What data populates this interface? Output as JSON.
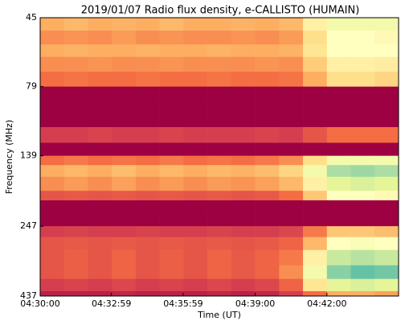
{
  "chart_data": {
    "type": "heatmap",
    "title": "2019/01/07  Radio flux density, e-CALLISTO (HUMAIN)",
    "x_label": "Time (UT)",
    "y_label": "Frequency (MHz)",
    "xlim": [
      "04:30:00",
      "04:45:00"
    ],
    "xticks": [
      "04:30:00",
      "04:32:59",
      "04:35:59",
      "04:39:00",
      "04:42:00"
    ],
    "ylim": [
      45,
      437
    ],
    "yscale": "log",
    "yinverted": true,
    "yticks": [
      45,
      79,
      139,
      247,
      437
    ],
    "colormap": [
      "#9e0142",
      "#d53e4f",
      "#f46d43",
      "#fdae61",
      "#fee08b",
      "#ffffbf",
      "#e6f598",
      "#abdda4",
      "#66c2a5",
      "#3288bd",
      "#5e4fa2"
    ],
    "xbins": [
      "04:30:00",
      "04:31:00",
      "04:32:00",
      "04:33:00",
      "04:34:00",
      "04:35:00",
      "04:36:00",
      "04:37:00",
      "04:38:00",
      "04:39:00",
      "04:40:00",
      "04:41:00",
      "04:42:00",
      "04:43:00",
      "04:44:00",
      "04:45:00"
    ],
    "ybins": [
      45,
      50,
      56,
      62,
      70,
      79,
      90,
      110,
      125,
      139,
      150,
      165,
      185,
      200,
      225,
      247,
      270,
      300,
      340,
      380,
      420,
      437
    ],
    "values": [
      [
        0.3,
        0.32,
        0.3,
        0.31,
        0.3,
        0.32,
        0.3,
        0.3,
        0.31,
        0.3,
        0.32,
        0.45,
        0.55,
        0.55,
        0.55
      ],
      [
        0.25,
        0.26,
        0.25,
        0.27,
        0.25,
        0.26,
        0.25,
        0.25,
        0.26,
        0.25,
        0.27,
        0.4,
        0.5,
        0.5,
        0.48
      ],
      [
        0.3,
        0.31,
        0.3,
        0.3,
        0.31,
        0.3,
        0.3,
        0.31,
        0.3,
        0.3,
        0.31,
        0.42,
        0.5,
        0.5,
        0.5
      ],
      [
        0.25,
        0.25,
        0.26,
        0.25,
        0.25,
        0.26,
        0.25,
        0.25,
        0.25,
        0.26,
        0.25,
        0.36,
        0.45,
        0.45,
        0.44
      ],
      [
        0.2,
        0.21,
        0.2,
        0.2,
        0.21,
        0.2,
        0.2,
        0.21,
        0.2,
        0.2,
        0.21,
        0.3,
        0.4,
        0.4,
        0.38
      ],
      [
        0.0,
        0.0,
        0.0,
        0.0,
        0.0,
        0.0,
        0.0,
        0.0,
        0.0,
        0.0,
        0.0,
        0.0,
        0.0,
        0.0,
        0.0
      ],
      [
        0.0,
        0.0,
        0.0,
        0.0,
        0.0,
        0.0,
        0.0,
        0.0,
        0.0,
        0.0,
        0.0,
        0.0,
        0.0,
        0.0,
        0.0
      ],
      [
        0.1,
        0.1,
        0.11,
        0.1,
        0.1,
        0.11,
        0.1,
        0.1,
        0.1,
        0.11,
        0.1,
        0.15,
        0.2,
        0.2,
        0.2
      ],
      [
        0.0,
        0.0,
        0.0,
        0.0,
        0.0,
        0.0,
        0.0,
        0.0,
        0.0,
        0.0,
        0.0,
        0.0,
        0.0,
        0.0,
        0.0
      ],
      [
        0.2,
        0.22,
        0.2,
        0.21,
        0.2,
        0.22,
        0.2,
        0.21,
        0.2,
        0.22,
        0.25,
        0.4,
        0.55,
        0.55,
        0.55
      ],
      [
        0.3,
        0.32,
        0.3,
        0.33,
        0.3,
        0.32,
        0.3,
        0.32,
        0.31,
        0.33,
        0.38,
        0.55,
        0.7,
        0.72,
        0.7
      ],
      [
        0.25,
        0.27,
        0.25,
        0.28,
        0.25,
        0.27,
        0.25,
        0.27,
        0.26,
        0.28,
        0.32,
        0.45,
        0.6,
        0.62,
        0.6
      ],
      [
        0.15,
        0.16,
        0.15,
        0.16,
        0.15,
        0.16,
        0.15,
        0.16,
        0.15,
        0.16,
        0.2,
        0.35,
        0.5,
        0.5,
        0.48
      ],
      [
        0.0,
        0.0,
        0.0,
        0.0,
        0.0,
        0.0,
        0.0,
        0.0,
        0.0,
        0.0,
        0.0,
        0.0,
        0.0,
        0.0,
        0.0
      ],
      [
        0.0,
        0.0,
        0.0,
        0.0,
        0.0,
        0.0,
        0.0,
        0.0,
        0.0,
        0.0,
        0.0,
        0.0,
        0.0,
        0.0,
        0.0
      ],
      [
        0.1,
        0.11,
        0.1,
        0.1,
        0.11,
        0.1,
        0.1,
        0.11,
        0.1,
        0.1,
        0.12,
        0.22,
        0.35,
        0.35,
        0.33
      ],
      [
        0.15,
        0.16,
        0.15,
        0.16,
        0.15,
        0.16,
        0.15,
        0.16,
        0.15,
        0.16,
        0.18,
        0.32,
        0.5,
        0.52,
        0.5
      ],
      [
        0.15,
        0.17,
        0.15,
        0.18,
        0.15,
        0.17,
        0.15,
        0.18,
        0.16,
        0.18,
        0.22,
        0.45,
        0.65,
        0.68,
        0.65
      ],
      [
        0.15,
        0.17,
        0.15,
        0.18,
        0.15,
        0.17,
        0.15,
        0.18,
        0.16,
        0.18,
        0.25,
        0.55,
        0.75,
        0.8,
        0.78
      ],
      [
        0.1,
        0.11,
        0.1,
        0.12,
        0.1,
        0.11,
        0.1,
        0.12,
        0.1,
        0.12,
        0.18,
        0.42,
        0.6,
        0.62,
        0.6
      ],
      [
        0.05,
        0.05,
        0.05,
        0.06,
        0.05,
        0.05,
        0.05,
        0.06,
        0.05,
        0.06,
        0.1,
        0.2,
        0.3,
        0.3,
        0.28
      ]
    ]
  }
}
